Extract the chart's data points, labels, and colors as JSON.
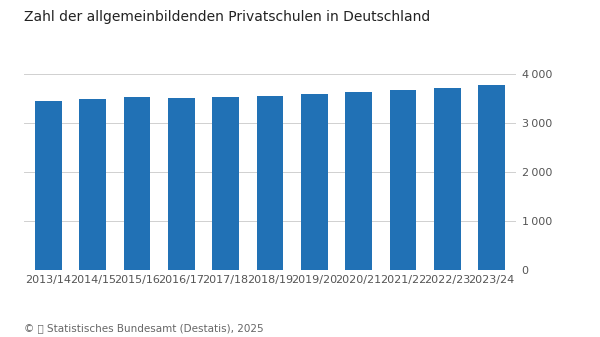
{
  "title": "Zahl der allgemeinbildenden Privatschulen in Deutschland",
  "categories": [
    "2013/14",
    "2014/15",
    "2015/16",
    "2016/17",
    "2017/18",
    "2018/19",
    "2019/20",
    "2020/21",
    "2021/22",
    "2022/23",
    "2023/24"
  ],
  "values": [
    3450,
    3490,
    3540,
    3510,
    3540,
    3560,
    3600,
    3630,
    3680,
    3720,
    3780
  ],
  "bar_color": "#2171b5",
  "background_color": "#ffffff",
  "ylim": [
    0,
    4000
  ],
  "yticks": [
    0,
    1000,
    2000,
    3000,
    4000
  ],
  "ytick_labels": [
    "0",
    "1 000",
    "2 000",
    "3 000",
    "4 000"
  ],
  "grid_color": "#d0d0d0",
  "title_fontsize": 10,
  "tick_fontsize": 8,
  "footer_fontsize": 7.5,
  "bar_width": 0.6
}
